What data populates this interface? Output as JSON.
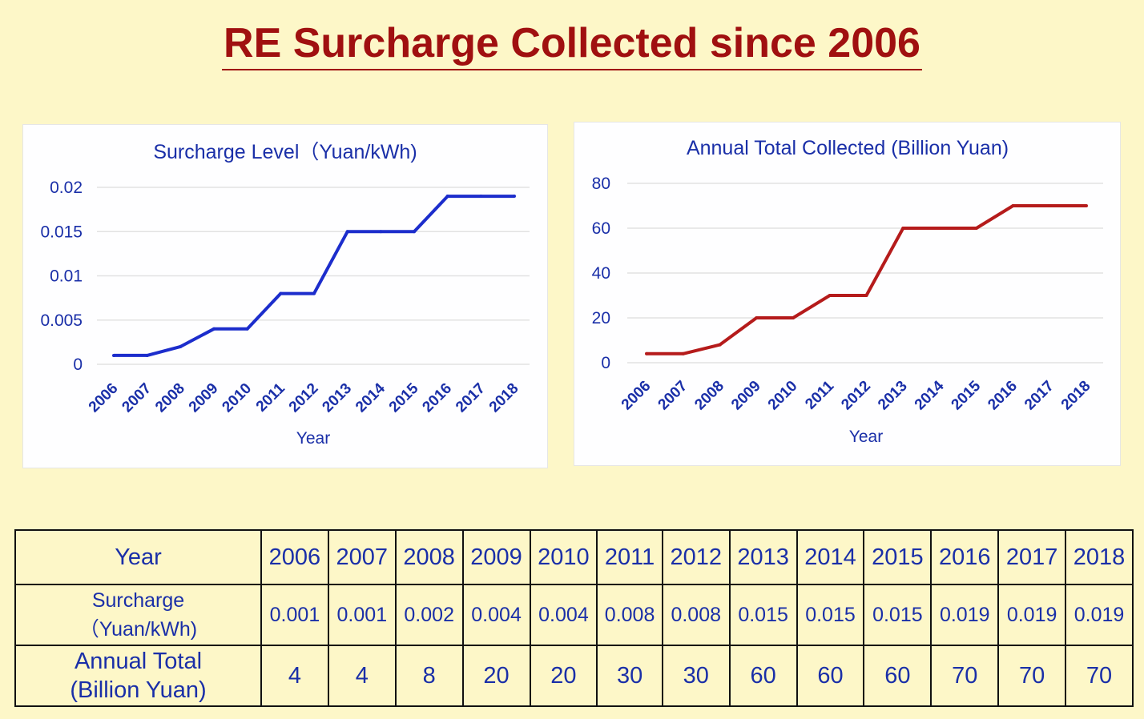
{
  "title": "RE Surcharge Collected since 2006",
  "colors": {
    "background": "#fdf7c8",
    "title": "#a01010",
    "text": "#1a2fa8",
    "series_left": "#1c2dcc",
    "series_right": "#b51b1b"
  },
  "chart_data": [
    {
      "type": "line",
      "title": "Surcharge Level（Yuan/kWh)",
      "xlabel": "Year",
      "ylabel": "",
      "x": [
        "2006",
        "2007",
        "2008",
        "2009",
        "2010",
        "2011",
        "2012",
        "2013",
        "2014",
        "2015",
        "2016",
        "2017",
        "2018"
      ],
      "series": [
        {
          "values": [
            0.001,
            0.001,
            0.002,
            0.004,
            0.004,
            0.008,
            0.008,
            0.015,
            0.015,
            0.015,
            0.019,
            0.019,
            0.019
          ]
        }
      ],
      "yticks": [
        "0",
        "0.005",
        "0.01",
        "0.015",
        "0.02"
      ],
      "ylim": [
        0,
        0.02
      ],
      "grid": true,
      "legend": "none"
    },
    {
      "type": "line",
      "title": "Annual Total Collected (Billion Yuan)",
      "xlabel": "Year",
      "ylabel": "",
      "x": [
        "2006",
        "2007",
        "2008",
        "2009",
        "2010",
        "2011",
        "2012",
        "2013",
        "2014",
        "2015",
        "2016",
        "2017",
        "2018"
      ],
      "series": [
        {
          "values": [
            4,
            4,
            8,
            20,
            20,
            30,
            30,
            60,
            60,
            60,
            70,
            70,
            70
          ]
        }
      ],
      "yticks": [
        "0",
        "20",
        "40",
        "60",
        "80"
      ],
      "ylim": [
        0,
        80
      ],
      "grid": true,
      "legend": "none"
    }
  ],
  "table": {
    "row_headers": {
      "year": "Year",
      "surcharge": [
        "Surcharge",
        "（Yuan/kWh)"
      ],
      "total": [
        "Annual Total",
        "(Billion Yuan)"
      ]
    },
    "years": [
      "2006",
      "2007",
      "2008",
      "2009",
      "2010",
      "2011",
      "2012",
      "2013",
      "2014",
      "2015",
      "2016",
      "2017",
      "2018"
    ],
    "surcharge": [
      "0.001",
      "0.001",
      "0.002",
      "0.004",
      "0.004",
      "0.008",
      "0.008",
      "0.015",
      "0.015",
      "0.015",
      "0.019",
      "0.019",
      "0.019"
    ],
    "total": [
      "4",
      "4",
      "8",
      "20",
      "20",
      "30",
      "30",
      "60",
      "60",
      "60",
      "70",
      "70",
      "70"
    ]
  }
}
